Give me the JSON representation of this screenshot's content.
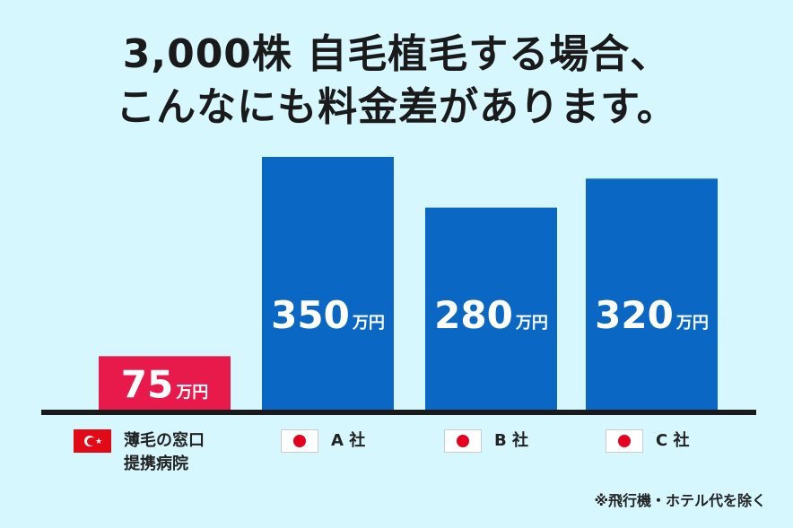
{
  "title": {
    "line1": "3,000株 自毛植毛する場合、",
    "line2": "こんなにも料金差があります。"
  },
  "chart_data": {
    "type": "bar",
    "categories": [
      "薄毛の窓口\n提携病院",
      "A 社",
      "B 社",
      "C 社"
    ],
    "values": [
      75,
      350,
      280,
      320
    ],
    "unit": "万円",
    "value_labels": [
      "75",
      "350",
      "280",
      "320"
    ],
    "bar_colors": [
      "#e8194b",
      "#0a68c4",
      "#0a68c4",
      "#0a68c4"
    ],
    "flags": [
      "turkey",
      "japan",
      "japan",
      "japan"
    ],
    "ylim": [
      0,
      350
    ],
    "title": "",
    "xlabel": "",
    "ylabel": ""
  },
  "note": "※飛行機・ホテル代を除く",
  "colors": {
    "background": "#d5f7fd",
    "baseline": "#1a1a1a",
    "highlight_bar": "#e8194b",
    "competitor_bar": "#0a68c4",
    "label_text": "#ffffff"
  }
}
